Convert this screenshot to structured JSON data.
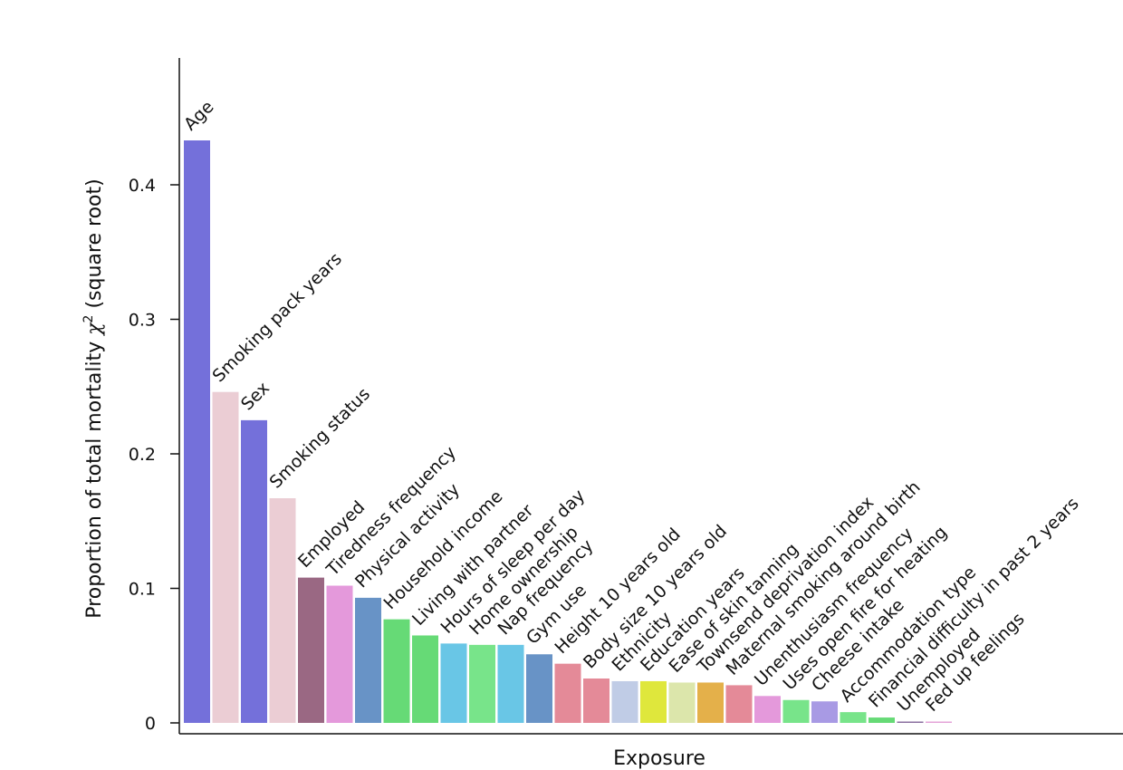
{
  "chart_data": {
    "type": "bar",
    "xlabel": "Exposure",
    "ylabel": {
      "prefix": "Proportion of total mortality ",
      "symbol": "χ",
      "superscript": "2",
      "suffix": " (square root)"
    },
    "ylim": [
      0,
      0.47
    ],
    "yticks": [
      0,
      0.1,
      0.2,
      0.3,
      0.4
    ],
    "ytick_labels": [
      "0",
      "0.1",
      "0.2",
      "0.3",
      "0.4"
    ],
    "grid": false,
    "categories": [
      "Age",
      "Smoking pack years",
      "Sex",
      "Smoking status",
      "Employed",
      "Tiredness frequency",
      "Physical activity",
      "Household income",
      "Living with partner",
      "Hours of sleep per day",
      "Home ownership",
      "Nap frequency",
      "Gym use",
      "Height 10 years old",
      "Body size 10 years old",
      "Ethnicity",
      "Education years",
      "Ease of skin tanning",
      "Townsend deprivation index",
      "Maternal smoking around birth",
      "Unenthusiasm frequency",
      "Uses open fire for heating",
      "Cheese intake",
      "Accommodation type",
      "Financial difficulty in past 2 years",
      "Unemployed",
      "Fed up feelings"
    ],
    "values": [
      0.433,
      0.246,
      0.225,
      0.167,
      0.108,
      0.102,
      0.093,
      0.077,
      0.065,
      0.059,
      0.058,
      0.058,
      0.051,
      0.044,
      0.033,
      0.031,
      0.031,
      0.03,
      0.03,
      0.028,
      0.02,
      0.017,
      0.016,
      0.008,
      0.004,
      0.001,
      0.001
    ],
    "colors": [
      "#7470da",
      "#ebcdd4",
      "#7470da",
      "#ebcdd4",
      "#9a6883",
      "#e499db",
      "#6893c6",
      "#66da76",
      "#66da76",
      "#69c6e6",
      "#78e48a",
      "#69c6e6",
      "#6893c6",
      "#e48a98",
      "#e48a98",
      "#c0cce6",
      "#dfe73c",
      "#dce6ab",
      "#e4b04a",
      "#e48a98",
      "#e499db",
      "#78e48a",
      "#a89ae4",
      "#78e48a",
      "#66da76",
      "#8a6f9f",
      "#e4a3d8"
    ]
  }
}
